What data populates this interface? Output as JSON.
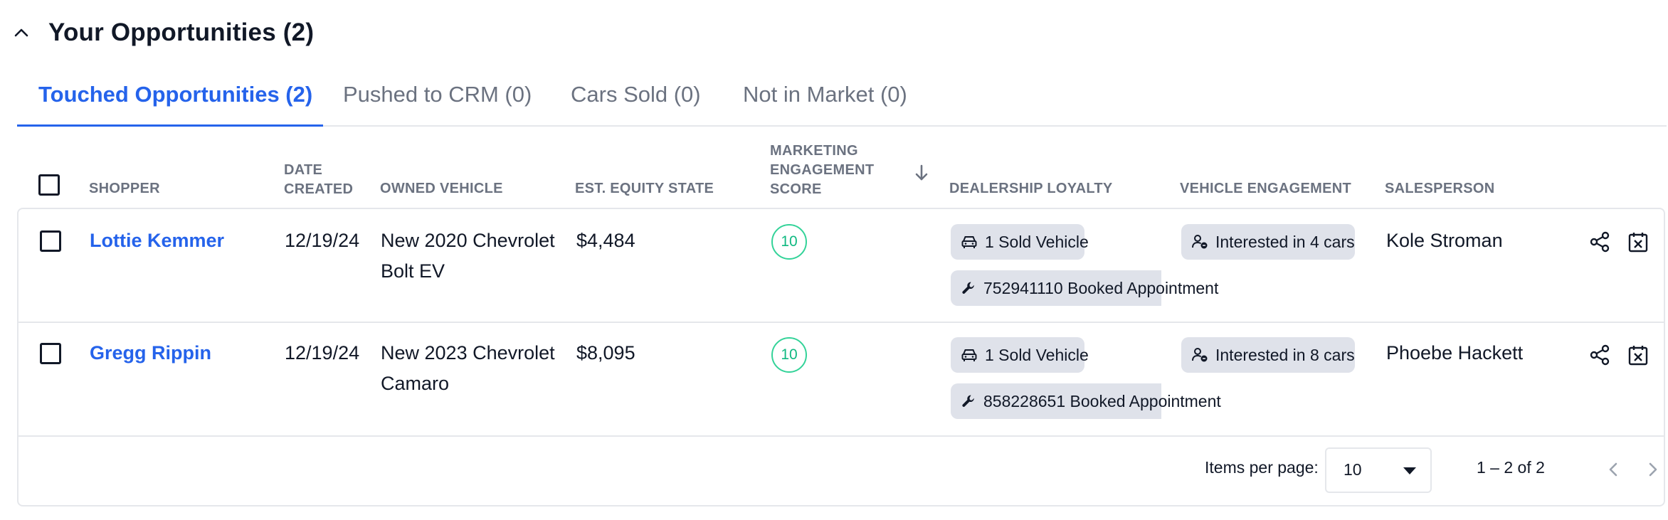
{
  "section": {
    "title": "Your Opportunities (2)",
    "collapse_icon": "chevron-up-icon"
  },
  "tabs": [
    {
      "label": "Touched Opportunities (2)",
      "active": true
    },
    {
      "label": "Pushed to CRM (0)",
      "active": false
    },
    {
      "label": "Cars Sold (0)",
      "active": false
    },
    {
      "label": "Not in Market (0)",
      "active": false
    }
  ],
  "columns": {
    "shopper": "SHOPPER",
    "date_line1": "DATE",
    "date_line2": "CREATED",
    "owned_vehicle": "OWNED VEHICLE",
    "equity": "EST. EQUITY STATE",
    "mes_line1": "MARKETING",
    "mes_line2": "ENGAGEMENT",
    "mes_line3": "SCORE",
    "loyalty": "DEALERSHIP LOYALTY",
    "vehicle_engagement": "VEHICLE ENGAGEMENT",
    "salesperson": "SALESPERSON"
  },
  "rows": [
    {
      "shopper": "Lottie Kemmer",
      "date": "12/19/24",
      "vehicle_line1": "New 2020 Chevrolet",
      "vehicle_line2": "Bolt EV",
      "equity": "$4,484",
      "score": "10",
      "loyalty_sold": "1 Sold Vehicle",
      "loyalty_booked": "752941110 Booked Appointment",
      "engagement": "Interested in 4 cars",
      "salesperson": "Kole Stroman"
    },
    {
      "shopper": "Gregg Rippin",
      "date": "12/19/24",
      "vehicle_line1": "New 2023 Chevrolet",
      "vehicle_line2": "Camaro",
      "equity": "$8,095",
      "score": "10",
      "loyalty_sold": "1 Sold Vehicle",
      "loyalty_booked": "858228651 Booked Appointment",
      "engagement": "Interested in 8 cars",
      "salesperson": "Phoebe Hackett"
    }
  ],
  "pagination": {
    "items_label": "Items per page:",
    "page_size": "10",
    "range": "1 – 2 of 2"
  },
  "colors": {
    "accent": "#2563eb",
    "score": "#10b981",
    "chip_bg": "#dfe2ea"
  }
}
